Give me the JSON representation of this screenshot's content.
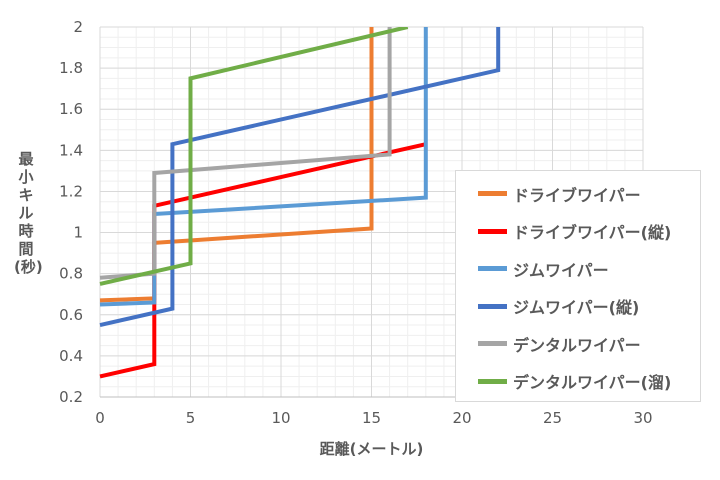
{
  "chart_data": {
    "type": "line",
    "title": "",
    "xlabel": "距離(メートル)",
    "ylabel": "最小キル時間(秒)",
    "xlim": [
      0,
      30
    ],
    "ylim": [
      0.2,
      2
    ],
    "xticks": [
      "0",
      "5",
      "10",
      "15",
      "20",
      "25",
      "30"
    ],
    "yticks": [
      "0.2",
      "0.4",
      "0.6",
      "0.8",
      "1",
      "1.2",
      "1.4",
      "1.6",
      "1.8",
      "2"
    ],
    "grid": true,
    "legend_position": "right",
    "series": [
      {
        "name": "ドライブワイパー",
        "color": "#ED7D31",
        "points": [
          [
            0,
            0.67
          ],
          [
            3,
            0.68
          ],
          [
            3,
            0.95
          ],
          [
            15,
            1.02
          ],
          [
            15,
            2.05
          ]
        ]
      },
      {
        "name": "ドライブワイパー(縦)",
        "color": "#FF0000",
        "points": [
          [
            0,
            0.3
          ],
          [
            3,
            0.36
          ],
          [
            3,
            1.13
          ],
          [
            18,
            1.43
          ]
        ]
      },
      {
        "name": "ジムワイパー",
        "color": "#5B9BD5",
        "points": [
          [
            0,
            0.65
          ],
          [
            3,
            0.66
          ],
          [
            3,
            1.09
          ],
          [
            18,
            1.17
          ],
          [
            18,
            2.05
          ]
        ]
      },
      {
        "name": "ジムワイパー(縦)",
        "color": "#4472C4",
        "points": [
          [
            0,
            0.55
          ],
          [
            4,
            0.63
          ],
          [
            4,
            1.43
          ],
          [
            22,
            1.79
          ],
          [
            22,
            2.05
          ]
        ]
      },
      {
        "name": "デンタルワイパー",
        "color": "#A5A5A5",
        "points": [
          [
            0,
            0.78
          ],
          [
            3,
            0.8
          ],
          [
            3,
            1.29
          ],
          [
            16,
            1.38
          ],
          [
            16,
            2.05
          ]
        ]
      },
      {
        "name": "デンタルワイパー(溜)",
        "color": "#70AD47",
        "points": [
          [
            0,
            0.75
          ],
          [
            5,
            0.85
          ],
          [
            5,
            1.75
          ],
          [
            17,
            2.0
          ]
        ]
      }
    ]
  }
}
